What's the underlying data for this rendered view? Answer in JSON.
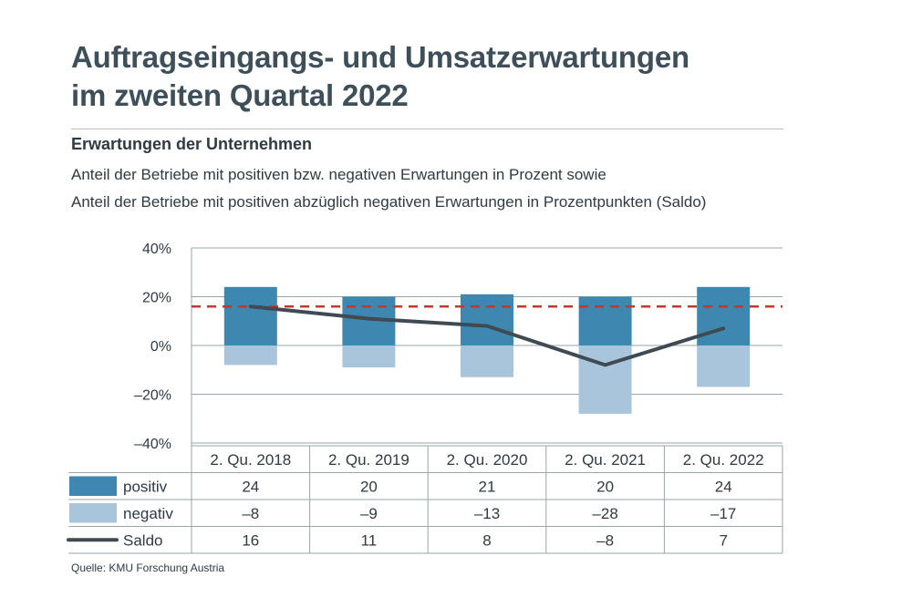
{
  "title_line1": "Auftragseingangs- und Umsatzerwartungen",
  "title_line2": "im zweiten Quartal 2022",
  "subtitle": "Erwartungen der Unternehmen",
  "description_line1": "Anteil der Betriebe mit positiven bzw. negativen Erwartungen in Prozent sowie",
  "description_line2": "Anteil der Betriebe mit positiven abzüglich negativen Erwartungen in Prozentpunkten (Saldo)",
  "source": "Quelle: KMU Forschung Austria",
  "colors": {
    "positiv": "#3d87b1",
    "negativ": "#a9c5dc",
    "saldo": "#3f4a52",
    "reference": "#c0392b",
    "grid": "#9aa3a8"
  },
  "chart_data": {
    "type": "bar",
    "categories": [
      "2. Qu. 2018",
      "2. Qu. 2019",
      "2. Qu. 2020",
      "2. Qu. 2021",
      "2. Qu. 2022"
    ],
    "series": [
      {
        "key": "positiv",
        "name": "positiv",
        "kind": "bar",
        "values": [
          24,
          20,
          21,
          20,
          24
        ]
      },
      {
        "key": "negativ",
        "name": "negativ",
        "kind": "bar",
        "values": [
          -8,
          -9,
          -13,
          -28,
          -17
        ]
      },
      {
        "key": "saldo",
        "name": "Saldo",
        "kind": "line",
        "values": [
          16,
          11,
          8,
          -8,
          7
        ]
      }
    ],
    "table_labels": {
      "positiv": [
        "24",
        "20",
        "21",
        "20",
        "24"
      ],
      "negativ": [
        "–8",
        "–9",
        "–13",
        "–28",
        "–17"
      ],
      "saldo": [
        "16",
        "11",
        "8",
        "–8",
        "7"
      ]
    },
    "y_ticks": [
      40,
      20,
      0,
      -20,
      -40
    ],
    "y_tick_labels": [
      "40%",
      "20%",
      "0%",
      "–20%",
      "–40%"
    ],
    "ylim": [
      -40,
      40
    ],
    "reference_line": 16,
    "grid": true
  }
}
